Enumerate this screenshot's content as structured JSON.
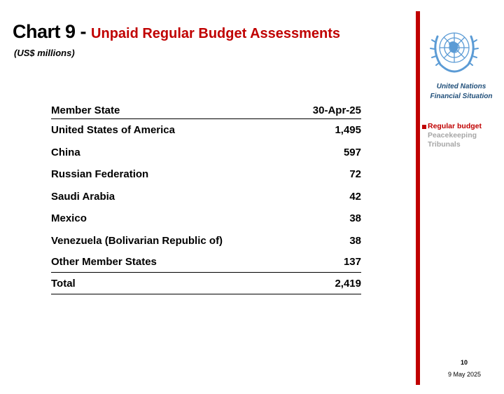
{
  "header": {
    "chart_no": "Chart 9 - ",
    "title": "Unpaid Regular Budget Assessments",
    "subtitle": "(US$ millions)"
  },
  "table": {
    "columns": [
      "Member State",
      "30-Apr-25"
    ],
    "rows": [
      [
        "United States of America",
        "1,495"
      ],
      [
        "China",
        "597"
      ],
      [
        "Russian Federation",
        "72"
      ],
      [
        "Saudi Arabia",
        "42"
      ],
      [
        "Mexico",
        "38"
      ],
      [
        "Venezuela (Bolivarian Republic of)",
        "38"
      ],
      [
        "Other Member States",
        "137"
      ]
    ],
    "total": [
      "Total",
      "2,419"
    ]
  },
  "sidebar": {
    "org_line1": "United Nations",
    "org_line2": "Financial Situation",
    "nav": [
      "Regular budget",
      "Peacekeeping",
      "Tribunals"
    ],
    "logo_icon": "un-emblem-icon",
    "accent_color": "#c00000",
    "logo_color": "#5b9bd5"
  },
  "footer": {
    "page": "10",
    "date": "9 May 2025"
  }
}
